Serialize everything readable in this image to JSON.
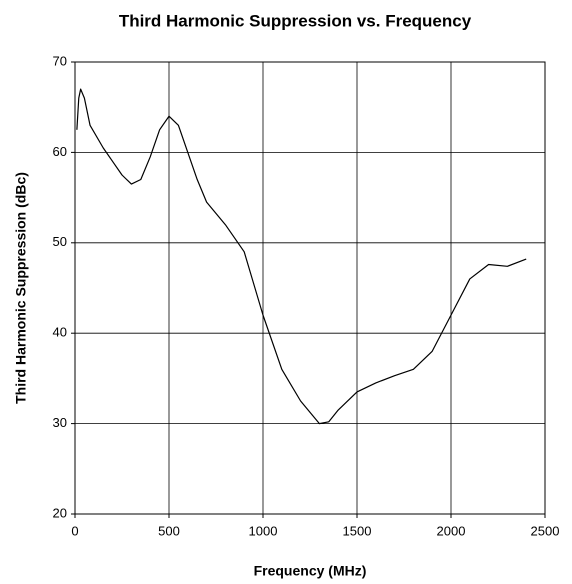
{
  "chart_data": {
    "type": "line",
    "title": "Third Harmonic Suppression vs. Frequency",
    "x_label": "Frequency (MHz)",
    "y_label": "Third Harmonic Suppression (dBc)",
    "x": [
      10,
      20,
      30,
      50,
      80,
      150,
      200,
      250,
      300,
      350,
      400,
      450,
      500,
      550,
      600,
      650,
      700,
      800,
      900,
      1000,
      1100,
      1200,
      1300,
      1350,
      1400,
      1500,
      1600,
      1700,
      1800,
      1900,
      2000,
      2100,
      2200,
      2300,
      2400
    ],
    "series": [
      {
        "name": "Third Harmonic Suppression",
        "color": "#000000",
        "values": [
          62.5,
          66,
          67,
          66,
          63,
          60.5,
          59,
          57.5,
          56.5,
          57,
          59.5,
          62.5,
          64,
          63,
          60,
          57,
          54.5,
          52,
          49,
          42,
          36,
          32.5,
          30,
          30.2,
          31.5,
          33.5,
          34.5,
          35.3,
          36,
          38,
          42,
          46,
          47.6,
          47.4,
          48.2
        ]
      }
    ],
    "xlim": [
      0,
      2500
    ],
    "xticks": [
      0,
      500,
      1000,
      1500,
      2000,
      2500
    ],
    "ylim": [
      20,
      70
    ],
    "yticks": [
      20,
      30,
      40,
      50,
      60,
      70
    ],
    "grid": true
  }
}
